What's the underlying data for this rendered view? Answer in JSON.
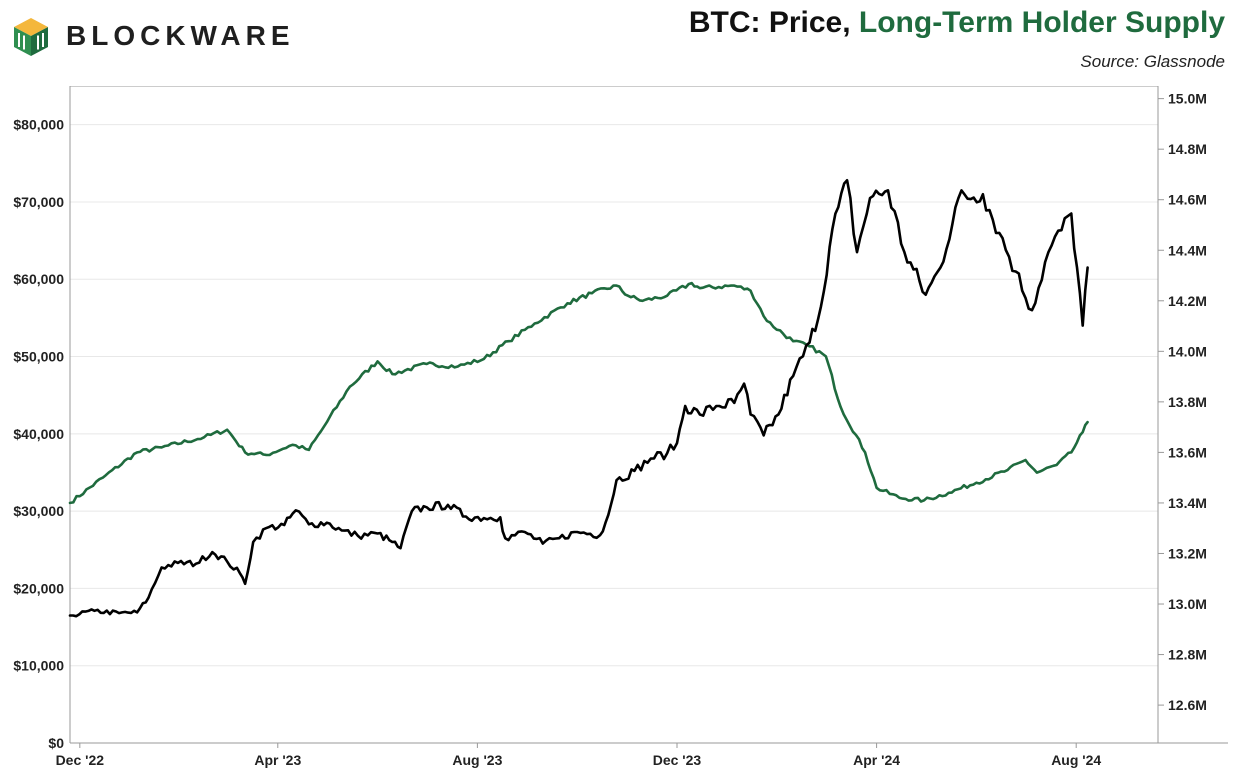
{
  "header": {
    "brand": "BLOCKWARE",
    "title_main": "BTC: Price, ",
    "title_accent": "Long-Term Holder Supply",
    "source": "Source: Glassnode"
  },
  "colors": {
    "price_line": "#000000",
    "lth_line": "#1f6b3e",
    "grid": "#e8e8e8",
    "axis": "#999999"
  },
  "chart_data": {
    "type": "line",
    "x_ticks": [
      "Dec '22",
      "Apr '23",
      "Aug '23",
      "Dec '23",
      "Apr '24",
      "Aug '24"
    ],
    "y_left_ticks": [
      "$0",
      "$10,000",
      "$20,000",
      "$30,000",
      "$40,000",
      "$50,000",
      "$60,000",
      "$70,000",
      "$80,000"
    ],
    "y_right_ticks": [
      "12.6M",
      "12.8M",
      "13.0M",
      "13.2M",
      "13.4M",
      "13.6M",
      "13.8M",
      "14.0M",
      "14.2M",
      "14.4M",
      "14.6M",
      "14.8M",
      "15.0M"
    ],
    "y_left_range": [
      0,
      85000
    ],
    "y_right_range": [
      12.45,
      15.05
    ],
    "x_range": [
      "2022-11-25",
      "2024-09-20"
    ],
    "grid": true,
    "series": [
      {
        "axis": "left",
        "points": [
          [
            "2022-11-25",
            16500
          ],
          [
            "2022-12-10",
            17100
          ],
          [
            "2022-12-25",
            16800
          ],
          [
            "2023-01-05",
            16900
          ],
          [
            "2023-01-12",
            18800
          ],
          [
            "2023-01-20",
            22700
          ],
          [
            "2023-01-30",
            23300
          ],
          [
            "2023-02-10",
            23200
          ],
          [
            "2023-02-20",
            24700
          ],
          [
            "2023-03-01",
            23500
          ],
          [
            "2023-03-09",
            21900
          ],
          [
            "2023-03-12",
            20600
          ],
          [
            "2023-03-17",
            26000
          ],
          [
            "2023-03-25",
            27800
          ],
          [
            "2023-04-05",
            28200
          ],
          [
            "2023-04-12",
            30100
          ],
          [
            "2023-04-20",
            28300
          ],
          [
            "2023-05-01",
            28500
          ],
          [
            "2023-05-10",
            27500
          ],
          [
            "2023-05-20",
            26800
          ],
          [
            "2023-06-01",
            27100
          ],
          [
            "2023-06-10",
            26000
          ],
          [
            "2023-06-15",
            25200
          ],
          [
            "2023-06-22",
            30000
          ],
          [
            "2023-07-01",
            30500
          ],
          [
            "2023-07-14",
            30800
          ],
          [
            "2023-07-25",
            29300
          ],
          [
            "2023-08-05",
            29100
          ],
          [
            "2023-08-15",
            29200
          ],
          [
            "2023-08-18",
            26500
          ],
          [
            "2023-08-30",
            27300
          ],
          [
            "2023-09-10",
            25800
          ],
          [
            "2023-09-20",
            26500
          ],
          [
            "2023-10-01",
            27300
          ],
          [
            "2023-10-15",
            26900
          ],
          [
            "2023-10-20",
            29500
          ],
          [
            "2023-10-25",
            34000
          ],
          [
            "2023-11-05",
            35200
          ],
          [
            "2023-11-15",
            36800
          ],
          [
            "2023-11-25",
            37500
          ],
          [
            "2023-12-01",
            38800
          ],
          [
            "2023-12-06",
            43600
          ],
          [
            "2023-12-15",
            42500
          ],
          [
            "2023-12-25",
            43600
          ],
          [
            "2024-01-05",
            44000
          ],
          [
            "2024-01-11",
            46500
          ],
          [
            "2024-01-15",
            42500
          ],
          [
            "2024-01-23",
            39800
          ],
          [
            "2024-02-01",
            42500
          ],
          [
            "2024-02-10",
            47500
          ],
          [
            "2024-02-20",
            51800
          ],
          [
            "2024-02-27",
            56500
          ],
          [
            "2024-03-05",
            66500
          ],
          [
            "2024-03-14",
            72800
          ],
          [
            "2024-03-20",
            63500
          ],
          [
            "2024-03-28",
            70500
          ],
          [
            "2024-04-08",
            71500
          ],
          [
            "2024-04-18",
            63500
          ],
          [
            "2024-05-01",
            58000
          ],
          [
            "2024-05-10",
            61500
          ],
          [
            "2024-05-21",
            70500
          ],
          [
            "2024-06-05",
            71000
          ],
          [
            "2024-06-15",
            66000
          ],
          [
            "2024-06-25",
            61000
          ],
          [
            "2024-07-05",
            56000
          ],
          [
            "2024-07-15",
            63500
          ],
          [
            "2024-07-29",
            68500
          ],
          [
            "2024-08-05",
            54000
          ],
          [
            "2024-08-08",
            61500
          ]
        ]
      },
      {
        "axis": "right",
        "points": [
          [
            "2022-11-25",
            13.4
          ],
          [
            "2022-12-15",
            13.5
          ],
          [
            "2023-01-05",
            13.6
          ],
          [
            "2023-01-20",
            13.62
          ],
          [
            "2023-02-15",
            13.66
          ],
          [
            "2023-03-01",
            13.69
          ],
          [
            "2023-03-12",
            13.6
          ],
          [
            "2023-03-25",
            13.59
          ],
          [
            "2023-04-10",
            13.63
          ],
          [
            "2023-04-20",
            13.61
          ],
          [
            "2023-05-01",
            13.72
          ],
          [
            "2023-05-15",
            13.86
          ],
          [
            "2023-06-01",
            13.96
          ],
          [
            "2023-06-10",
            13.91
          ],
          [
            "2023-07-01",
            13.95
          ],
          [
            "2023-07-20",
            13.94
          ],
          [
            "2023-08-05",
            13.97
          ],
          [
            "2023-08-20",
            14.04
          ],
          [
            "2023-09-05",
            14.11
          ],
          [
            "2023-09-25",
            14.19
          ],
          [
            "2023-10-10",
            14.23
          ],
          [
            "2023-10-25",
            14.26
          ],
          [
            "2023-11-01",
            14.22
          ],
          [
            "2023-11-10",
            14.2
          ],
          [
            "2023-11-25",
            14.22
          ],
          [
            "2023-12-10",
            14.27
          ],
          [
            "2023-12-15",
            14.25
          ],
          [
            "2024-01-05",
            14.26
          ],
          [
            "2024-01-15",
            14.24
          ],
          [
            "2024-01-25",
            14.12
          ],
          [
            "2024-02-10",
            14.04
          ],
          [
            "2024-02-20",
            14.02
          ],
          [
            "2024-03-01",
            13.98
          ],
          [
            "2024-03-10",
            13.78
          ],
          [
            "2024-03-25",
            13.6
          ],
          [
            "2024-04-01",
            13.46
          ],
          [
            "2024-04-15",
            13.42
          ],
          [
            "2024-04-30",
            13.41
          ],
          [
            "2024-05-15",
            13.44
          ],
          [
            "2024-06-01",
            13.48
          ],
          [
            "2024-06-20",
            13.53
          ],
          [
            "2024-07-01",
            13.57
          ],
          [
            "2024-07-08",
            13.52
          ],
          [
            "2024-07-20",
            13.55
          ],
          [
            "2024-07-29",
            13.6
          ],
          [
            "2024-08-05",
            13.68
          ],
          [
            "2024-08-08",
            13.72
          ]
        ]
      }
    ]
  }
}
